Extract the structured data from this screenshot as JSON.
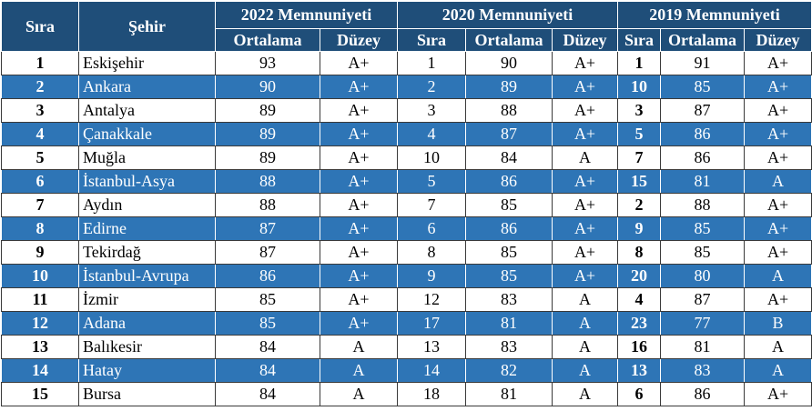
{
  "headers": {
    "sira": "Sıra",
    "sehir": "Şehir",
    "y2022": "2022 Memnuniyeti",
    "y2020": "2020 Memnuniyeti",
    "y2019": "2019 Memnuniyeti",
    "ortalama": "Ortalama",
    "duzey": "Düzey",
    "sira_sub": "Sıra"
  },
  "rows": [
    {
      "rank": "1",
      "city": "Eskişehir",
      "avg22": "93",
      "lvl22": "A+",
      "rank20": "1",
      "avg20": "90",
      "lvl20": "A+",
      "rank19": "1",
      "avg19": "91",
      "lvl19": "A+"
    },
    {
      "rank": "2",
      "city": "Ankara",
      "avg22": "90",
      "lvl22": "A+",
      "rank20": "2",
      "avg20": "89",
      "lvl20": "A+",
      "rank19": "10",
      "avg19": "85",
      "lvl19": "A+"
    },
    {
      "rank": "3",
      "city": "Antalya",
      "avg22": "89",
      "lvl22": "A+",
      "rank20": "3",
      "avg20": "88",
      "lvl20": "A+",
      "rank19": "3",
      "avg19": "87",
      "lvl19": "A+"
    },
    {
      "rank": "4",
      "city": "Çanakkale",
      "avg22": "89",
      "lvl22": "A+",
      "rank20": "4",
      "avg20": "87",
      "lvl20": "A+",
      "rank19": "5",
      "avg19": "86",
      "lvl19": "A+"
    },
    {
      "rank": "5",
      "city": "Muğla",
      "avg22": "89",
      "lvl22": "A+",
      "rank20": "10",
      "avg20": "84",
      "lvl20": "A",
      "rank19": "7",
      "avg19": "86",
      "lvl19": "A+"
    },
    {
      "rank": "6",
      "city": "İstanbul-Asya",
      "avg22": "88",
      "lvl22": "A+",
      "rank20": "5",
      "avg20": "86",
      "lvl20": "A+",
      "rank19": "15",
      "avg19": "81",
      "lvl19": "A"
    },
    {
      "rank": "7",
      "city": "Aydın",
      "avg22": "88",
      "lvl22": "A+",
      "rank20": "7",
      "avg20": "85",
      "lvl20": "A+",
      "rank19": "2",
      "avg19": "88",
      "lvl19": "A+"
    },
    {
      "rank": "8",
      "city": "Edirne",
      "avg22": "87",
      "lvl22": "A+",
      "rank20": "6",
      "avg20": "86",
      "lvl20": "A+",
      "rank19": "9",
      "avg19": "85",
      "lvl19": "A+"
    },
    {
      "rank": "9",
      "city": "Tekirdağ",
      "avg22": "87",
      "lvl22": "A+",
      "rank20": "8",
      "avg20": "85",
      "lvl20": "A+",
      "rank19": "8",
      "avg19": "85",
      "lvl19": "A+"
    },
    {
      "rank": "10",
      "city": "İstanbul-Avrupa",
      "avg22": "86",
      "lvl22": "A+",
      "rank20": "9",
      "avg20": "85",
      "lvl20": "A+",
      "rank19": "20",
      "avg19": "80",
      "lvl19": "A"
    },
    {
      "rank": "11",
      "city": "İzmir",
      "avg22": "85",
      "lvl22": "A+",
      "rank20": "12",
      "avg20": "83",
      "lvl20": "A",
      "rank19": "4",
      "avg19": "87",
      "lvl19": "A+"
    },
    {
      "rank": "12",
      "city": "Adana",
      "avg22": "85",
      "lvl22": "A+",
      "rank20": "17",
      "avg20": "81",
      "lvl20": "A",
      "rank19": "23",
      "avg19": "77",
      "lvl19": "B"
    },
    {
      "rank": "13",
      "city": "Balıkesir",
      "avg22": "84",
      "lvl22": "A",
      "rank20": "13",
      "avg20": "83",
      "lvl20": "A",
      "rank19": "16",
      "avg19": "81",
      "lvl19": "A"
    },
    {
      "rank": "14",
      "city": "Hatay",
      "avg22": "84",
      "lvl22": "A",
      "rank20": "14",
      "avg20": "82",
      "lvl20": "A",
      "rank19": "13",
      "avg19": "83",
      "lvl19": "A"
    },
    {
      "rank": "15",
      "city": "Bursa",
      "avg22": "84",
      "lvl22": "A",
      "rank20": "18",
      "avg20": "81",
      "lvl20": "A",
      "rank19": "6",
      "avg19": "86",
      "lvl19": "A+"
    }
  ],
  "colors": {
    "header_bg": "#1f4e79",
    "alt_row_bg": "#2e75b6",
    "text_light": "#ffffff",
    "text_dark": "#000000"
  }
}
